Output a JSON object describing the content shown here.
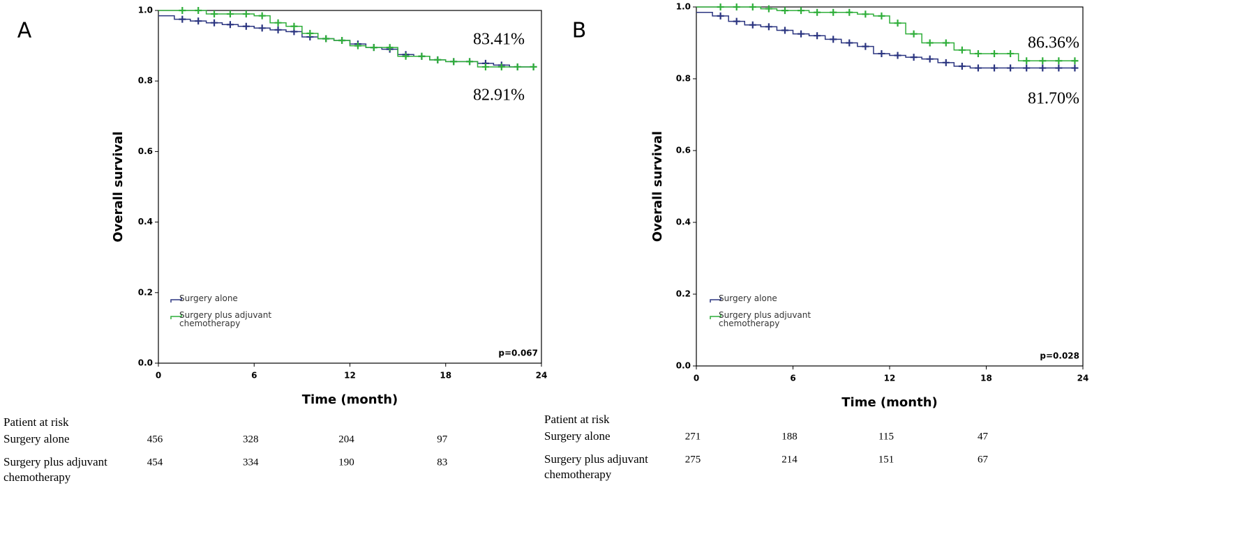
{
  "chart_data": [
    {
      "type": "step",
      "panel": "A",
      "ylabel": "Overall survival",
      "xlabel": "Time (month)",
      "xlim": [
        0,
        24
      ],
      "xticks": [
        0,
        6,
        12,
        18,
        24
      ],
      "ylim": [
        0,
        1
      ],
      "yticks": [
        {
          "value": 0,
          "label": "0.0"
        },
        {
          "value": 0.2,
          "label": "0.2"
        },
        {
          "value": 0.4,
          "label": "0.4"
        },
        {
          "value": 0.6,
          "label": "0.6"
        },
        {
          "value": 0.8,
          "label": "0.8"
        },
        {
          "value": 1,
          "label": "1.0"
        }
      ],
      "series": [
        {
          "name": "Surgery alone",
          "color": "#2b3580",
          "x": [
            0,
            1,
            2,
            3,
            4,
            5,
            6,
            7,
            8,
            9,
            10,
            11,
            12,
            13,
            14,
            15,
            16,
            17,
            18,
            19,
            20,
            21,
            22,
            23
          ],
          "values": [
            0.985,
            0.975,
            0.97,
            0.965,
            0.96,
            0.955,
            0.95,
            0.945,
            0.94,
            0.925,
            0.92,
            0.915,
            0.905,
            0.895,
            0.89,
            0.875,
            0.87,
            0.86,
            0.855,
            0.855,
            0.85,
            0.845,
            0.84,
            0.84
          ]
        },
        {
          "name": "Surgery plus adjuvant chemotherapy",
          "color": "#2fae3a",
          "x": [
            0,
            1,
            2,
            3,
            4,
            5,
            6,
            7,
            8,
            9,
            10,
            11,
            12,
            13,
            14,
            15,
            16,
            17,
            18,
            19,
            20,
            21,
            22,
            23
          ],
          "values": [
            1,
            1,
            1,
            0.99,
            0.99,
            0.99,
            0.985,
            0.965,
            0.955,
            0.935,
            0.92,
            0.915,
            0.9,
            0.895,
            0.895,
            0.87,
            0.87,
            0.86,
            0.855,
            0.855,
            0.84,
            0.84,
            0.84,
            0.84
          ]
        }
      ],
      "annotations": [
        "83.41%",
        "82.91%"
      ],
      "p_value": "p=0.067",
      "risk_table": {
        "title": "Patient at risk",
        "rows": [
          {
            "label": "Surgery alone",
            "values": [
              456,
              328,
              204,
              97
            ]
          },
          {
            "label": "Surgery plus adjuvant chemotherapy",
            "values": [
              454,
              334,
              190,
              83
            ]
          }
        ]
      }
    },
    {
      "type": "step",
      "panel": "B",
      "ylabel": "Overall survival",
      "xlabel": "Time (month)",
      "xlim": [
        0,
        24
      ],
      "xticks": [
        0,
        6,
        12,
        18,
        24
      ],
      "ylim": [
        0,
        1
      ],
      "yticks": [
        {
          "value": 0,
          "label": "0.0"
        },
        {
          "value": 0.2,
          "label": "0.2"
        },
        {
          "value": 0.4,
          "label": "0.4"
        },
        {
          "value": 0.6,
          "label": "0.6"
        },
        {
          "value": 0.8,
          "label": "0.8"
        },
        {
          "value": 1,
          "label": "1.0"
        }
      ],
      "series": [
        {
          "name": "Surgery alone",
          "color": "#2b3580",
          "x": [
            0,
            1,
            2,
            3,
            4,
            5,
            6,
            7,
            8,
            9,
            10,
            11,
            12,
            13,
            14,
            15,
            16,
            17,
            18,
            19,
            20,
            21,
            22,
            23
          ],
          "values": [
            0.985,
            0.975,
            0.96,
            0.95,
            0.945,
            0.935,
            0.925,
            0.92,
            0.91,
            0.9,
            0.89,
            0.87,
            0.865,
            0.86,
            0.855,
            0.845,
            0.835,
            0.83,
            0.83,
            0.83,
            0.83,
            0.83,
            0.83,
            0.83
          ]
        },
        {
          "name": "Surgery plus adjuvant chemotherapy",
          "color": "#2fae3a",
          "x": [
            0,
            1,
            2,
            3,
            4,
            5,
            6,
            7,
            8,
            9,
            10,
            11,
            12,
            13,
            14,
            15,
            16,
            17,
            18,
            19,
            20,
            21,
            22,
            23
          ],
          "values": [
            1,
            1,
            1,
            1,
            0.995,
            0.99,
            0.99,
            0.985,
            0.985,
            0.985,
            0.98,
            0.975,
            0.955,
            0.925,
            0.9,
            0.9,
            0.88,
            0.87,
            0.87,
            0.87,
            0.85,
            0.85,
            0.85,
            0.85
          ]
        }
      ],
      "annotations": [
        "86.36%",
        "81.70%"
      ],
      "p_value": "p=0.028",
      "risk_table": {
        "title": "Patient at risk",
        "rows": [
          {
            "label": "Surgery alone",
            "values": [
              271,
              188,
              115,
              47
            ]
          },
          {
            "label": "Surgery plus adjuvant chemotherapy",
            "values": [
              275,
              214,
              151,
              67
            ]
          }
        ]
      }
    }
  ]
}
